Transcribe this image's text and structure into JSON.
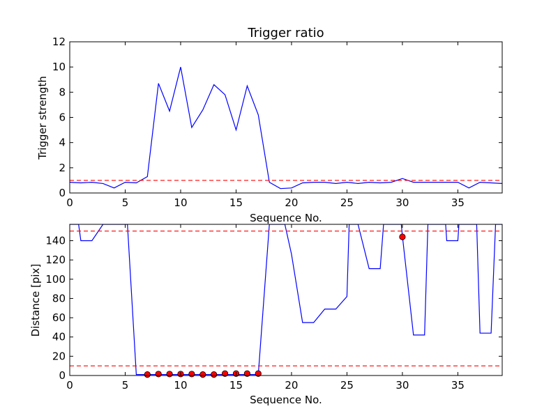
{
  "chart_data": [
    {
      "type": "line",
      "title": "Trigger ratio",
      "xlabel": "Sequence No.",
      "ylabel": "Trigger strength",
      "xlim": [
        0,
        39
      ],
      "ylim": [
        0,
        12
      ],
      "xticks": [
        0,
        5,
        10,
        15,
        20,
        25,
        30,
        35
      ],
      "yticks": [
        0,
        2,
        4,
        6,
        8,
        10,
        12
      ],
      "grid": false,
      "series": [
        {
          "kind": "line",
          "color": "#0000ff",
          "x": [
            0,
            1,
            2,
            3,
            4,
            5,
            6,
            7,
            8,
            9,
            10,
            11,
            12,
            13,
            14,
            15,
            16,
            17,
            18,
            19,
            20,
            21,
            22,
            23,
            24,
            25,
            26,
            27,
            28,
            29,
            30,
            31,
            32,
            33,
            34,
            35,
            36,
            37,
            38,
            39
          ],
          "values": [
            0.85,
            0.8,
            0.85,
            0.75,
            0.4,
            0.85,
            0.8,
            1.3,
            8.7,
            6.5,
            10.0,
            5.2,
            6.6,
            8.6,
            7.8,
            5.0,
            8.5,
            6.2,
            0.85,
            0.35,
            0.4,
            0.8,
            0.85,
            0.85,
            0.75,
            0.85,
            0.75,
            0.85,
            0.8,
            0.85,
            1.15,
            0.85,
            0.85,
            0.85,
            0.85,
            0.85,
            0.4,
            0.85,
            0.8,
            0.75
          ]
        }
      ],
      "hlines": [
        {
          "y": 1.0,
          "color": "#ff0000",
          "style": "dashed"
        }
      ]
    },
    {
      "type": "line",
      "title": "",
      "xlabel": "Sequence No.",
      "ylabel": "Distance [pix]",
      "xlim": [
        0,
        39
      ],
      "ylim": [
        0,
        157
      ],
      "xticks": [
        0,
        5,
        10,
        15,
        20,
        25,
        30,
        35
      ],
      "yticks": [
        0,
        20,
        40,
        60,
        80,
        100,
        120,
        140
      ],
      "grid": false,
      "series": [
        {
          "kind": "line",
          "color": "#0000ff",
          "x": [
            0,
            0.8,
            1,
            2,
            3,
            4,
            5,
            5.2,
            6,
            7,
            8,
            9,
            10,
            11,
            12,
            13,
            14,
            15,
            16,
            17,
            18,
            19,
            19.4,
            20,
            21,
            22,
            23,
            24,
            25,
            25.2,
            26,
            27,
            28,
            28.3,
            29,
            29.9,
            30,
            31,
            32,
            32.3,
            33,
            33.9,
            34,
            35,
            35.1,
            36,
            36.7,
            37,
            38,
            38.4,
            39
          ],
          "values": [
            157,
            157,
            140,
            140,
            157,
            157,
            157,
            157,
            1,
            1,
            1,
            1,
            1,
            1,
            1,
            1,
            1,
            1,
            1,
            1,
            157,
            157,
            157,
            126,
            55,
            55,
            69,
            69,
            82,
            157,
            157,
            111,
            111,
            157,
            157,
            157,
            145,
            42,
            42,
            157,
            157,
            157,
            140,
            140,
            157,
            157,
            157,
            44,
            44,
            157,
            157
          ]
        },
        {
          "kind": "markers",
          "color": "#ff0000",
          "x": [
            7,
            8,
            9,
            10,
            11,
            12,
            13,
            14,
            15,
            16,
            17,
            30
          ],
          "values": [
            1,
            1.5,
            1.5,
            1.5,
            1.5,
            1,
            1,
            2,
            2,
            2,
            2,
            144
          ]
        }
      ],
      "hlines": [
        {
          "y": 150,
          "color": "#ff0000",
          "style": "dashed"
        },
        {
          "y": 10,
          "color": "#ff0000",
          "style": "dashed"
        }
      ]
    }
  ]
}
